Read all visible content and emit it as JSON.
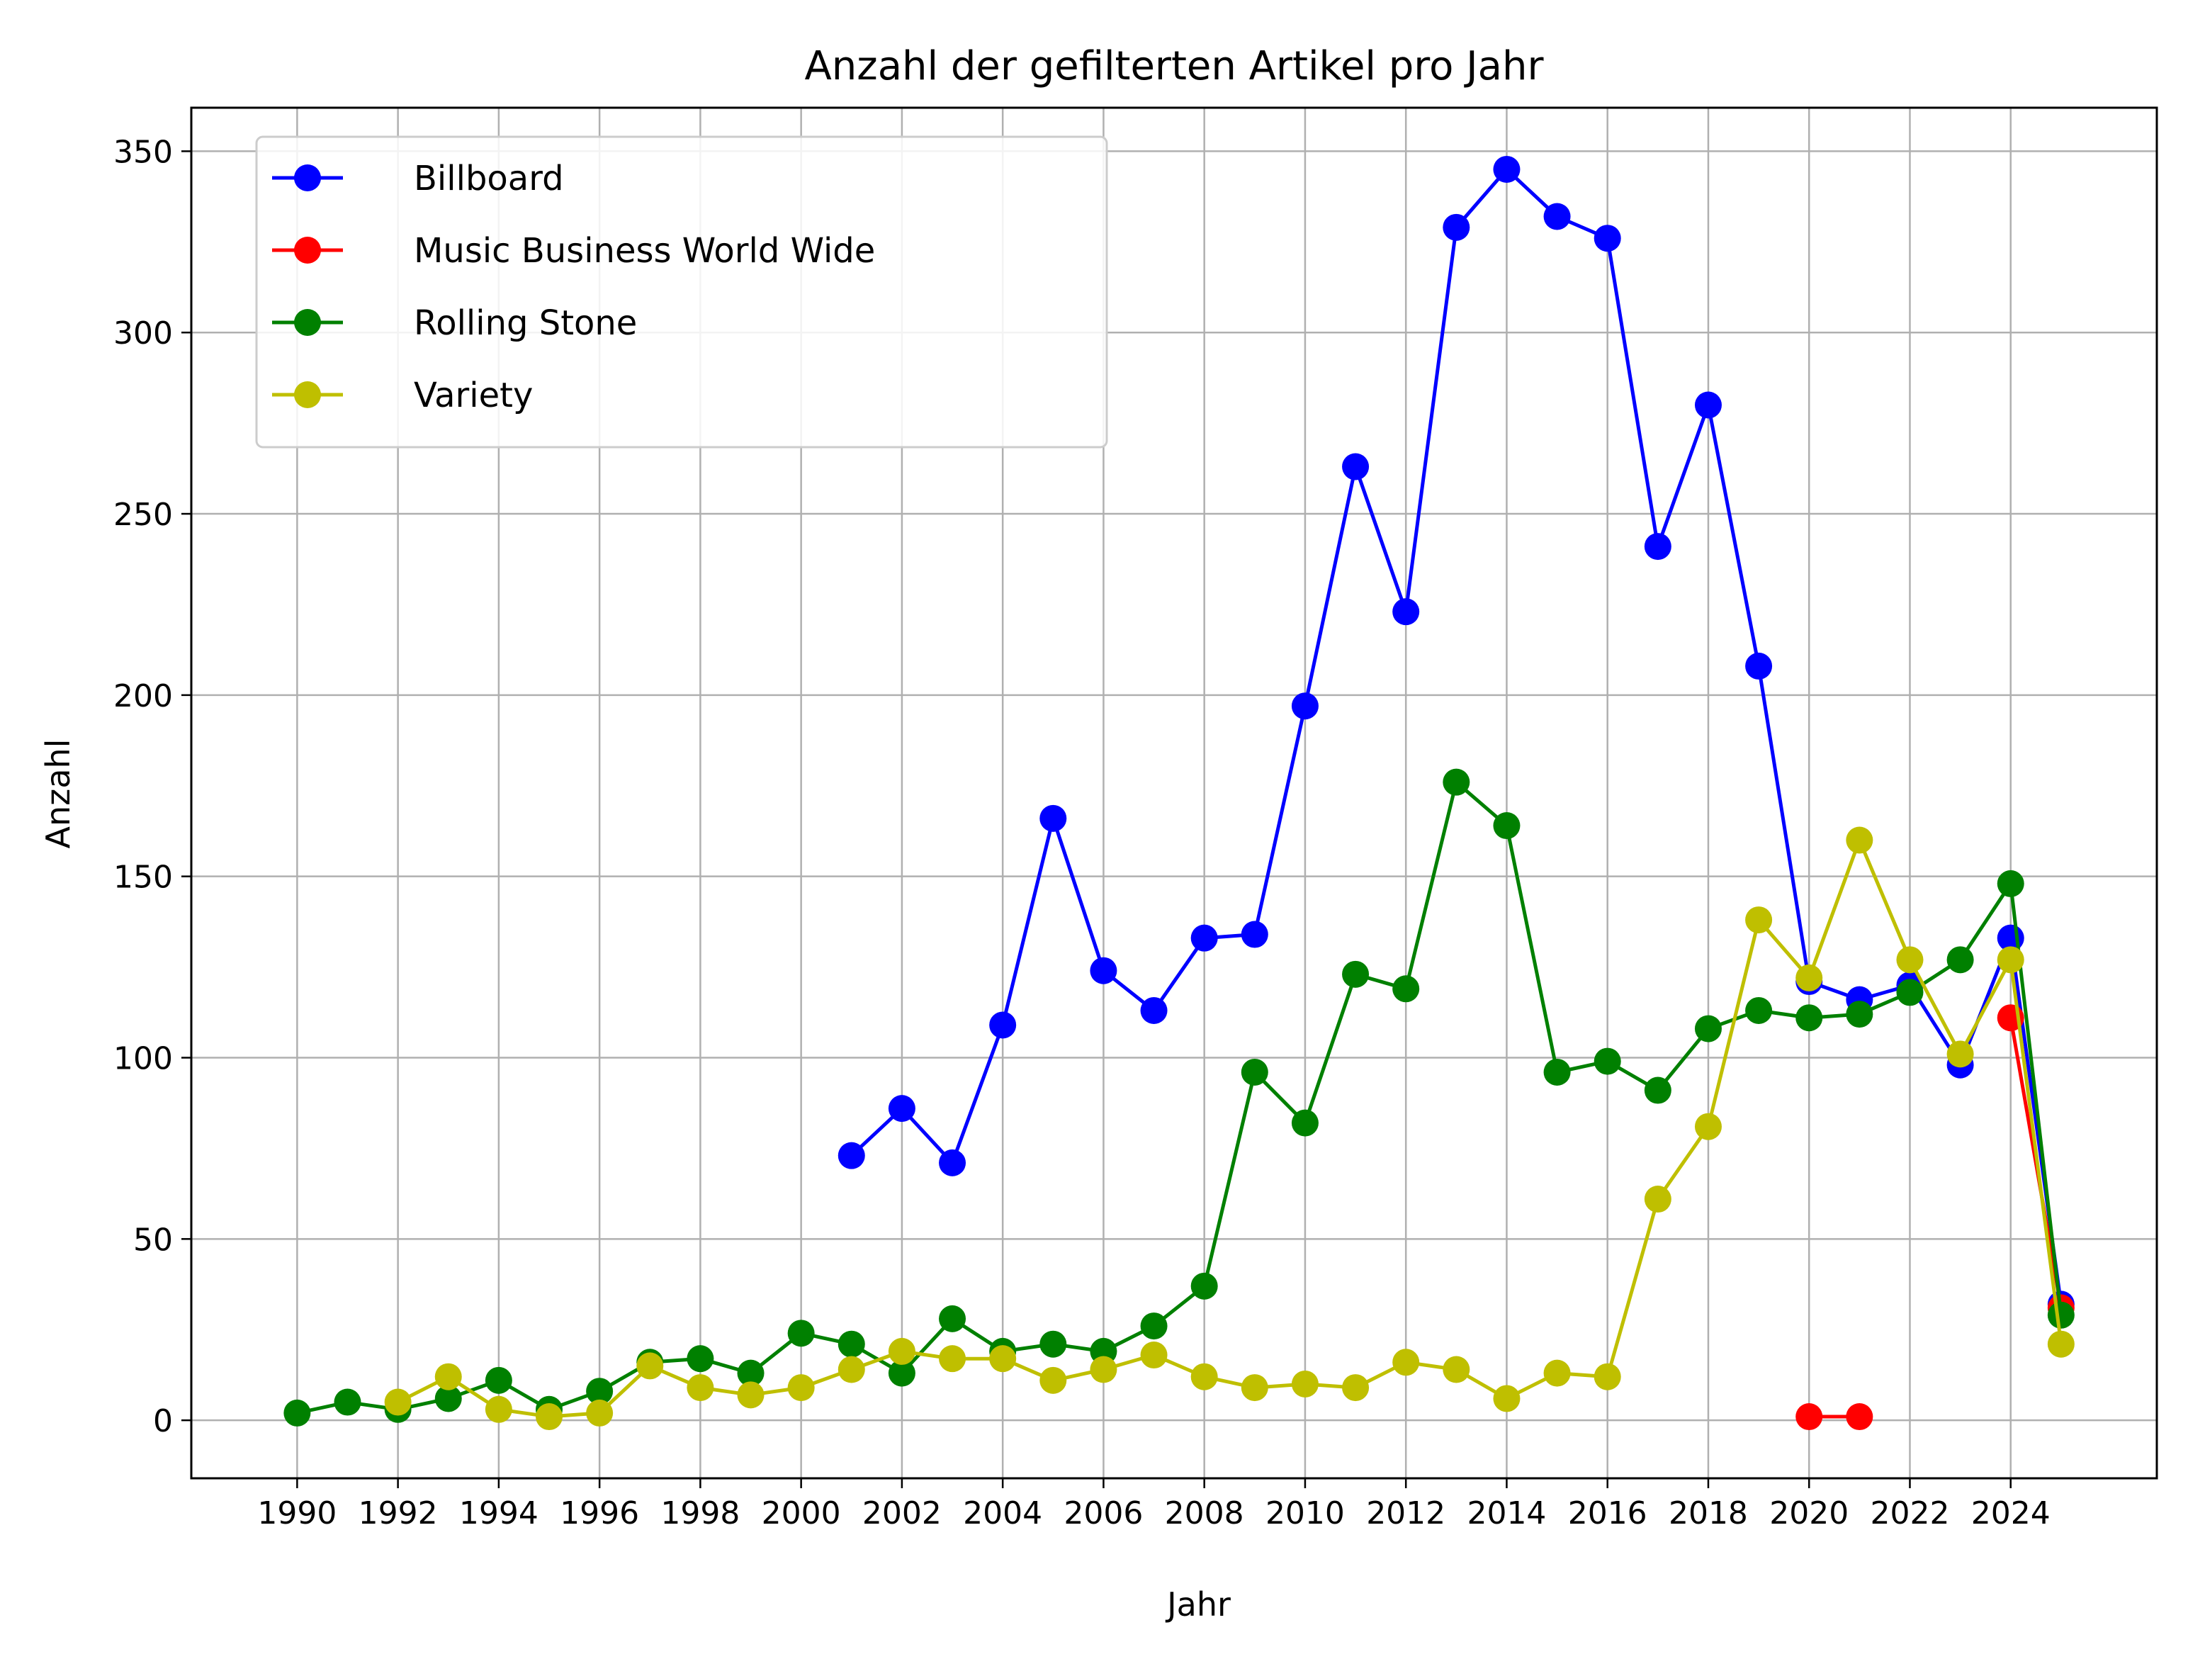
{
  "chart_data": {
    "type": "line",
    "title": "Anzahl der gefilterten Artikel pro Jahr",
    "xlabel": "Jahr",
    "ylabel": "Anzahl",
    "xlim": [
      1987.9,
      2026.9
    ],
    "ylim": [
      -16,
      362
    ],
    "xticks": [
      1990,
      1992,
      1994,
      1996,
      1998,
      2000,
      2002,
      2004,
      2006,
      2008,
      2010,
      2012,
      2014,
      2016,
      2018,
      2020,
      2022,
      2024
    ],
    "yticks": [
      0,
      50,
      100,
      150,
      200,
      250,
      300,
      350
    ],
    "grid": true,
    "legend_position": "top-left",
    "series": [
      {
        "name": "Billboard",
        "color": "#0000ff",
        "x": [
          2001,
          2002,
          2003,
          2004,
          2005,
          2006,
          2007,
          2008,
          2009,
          2010,
          2011,
          2012,
          2013,
          2014,
          2015,
          2016,
          2017,
          2018,
          2019,
          2020,
          2021,
          2022,
          2023,
          2024,
          2025
        ],
        "y": [
          73,
          86,
          71,
          109,
          166,
          124,
          113,
          133,
          134,
          197,
          263,
          223,
          329,
          345,
          332,
          326,
          241,
          280,
          208,
          121,
          116,
          120,
          98,
          133,
          32
        ]
      },
      {
        "name": "Music Business World Wide",
        "color": "#ff0000",
        "x": [
          2020,
          2021,
          null,
          2024,
          2025
        ],
        "y": [
          1,
          1,
          null,
          111,
          31
        ]
      },
      {
        "name": "Rolling Stone",
        "color": "#008000",
        "x": [
          1990,
          1991,
          1992,
          1993,
          1994,
          1995,
          1996,
          1997,
          1998,
          1999,
          2000,
          2001,
          2002,
          2003,
          2004,
          2005,
          2006,
          2007,
          2008,
          2009,
          2010,
          2011,
          2012,
          2013,
          2014,
          2015,
          2016,
          2017,
          2018,
          2019,
          2020,
          2021,
          2022,
          2023,
          2024,
          2025
        ],
        "y": [
          2,
          5,
          3,
          6,
          11,
          3,
          8,
          16,
          17,
          13,
          24,
          21,
          13,
          28,
          19,
          21,
          19,
          26,
          37,
          96,
          82,
          123,
          119,
          176,
          164,
          96,
          99,
          91,
          108,
          113,
          111,
          112,
          118,
          127,
          148,
          29
        ]
      },
      {
        "name": "Variety",
        "color": "#bfbf00",
        "x": [
          1992,
          1993,
          1994,
          1995,
          1996,
          1997,
          1998,
          1999,
          2000,
          2001,
          2002,
          2003,
          2004,
          2005,
          2006,
          2007,
          2008,
          2009,
          2010,
          2011,
          2012,
          2013,
          2014,
          2015,
          2016,
          2017,
          2018,
          2019,
          2020,
          2021,
          2022,
          2023,
          2024,
          2025
        ],
        "y": [
          5,
          12,
          3,
          1,
          2,
          15,
          9,
          7,
          9,
          14,
          19,
          17,
          17,
          11,
          14,
          18,
          12,
          9,
          10,
          9,
          16,
          14,
          6,
          13,
          12,
          61,
          81,
          138,
          122,
          160,
          127,
          101,
          127,
          21
        ]
      }
    ]
  }
}
